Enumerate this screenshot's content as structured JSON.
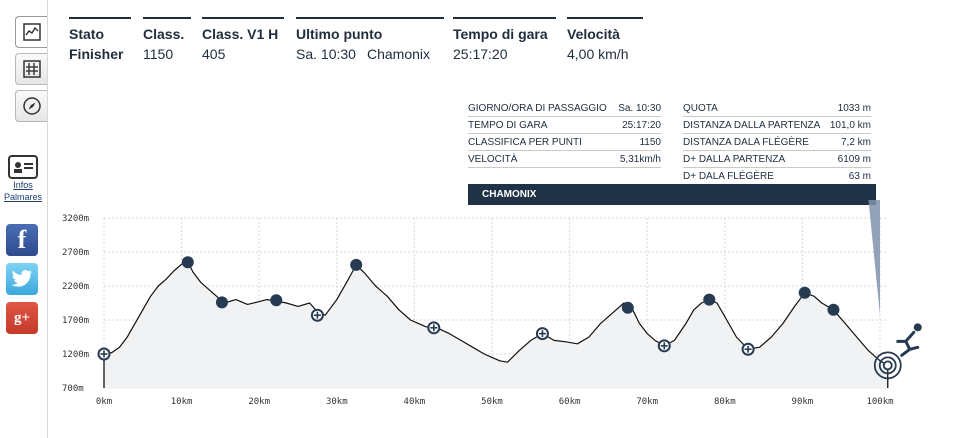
{
  "toolbar": {
    "items": [
      {
        "name": "profile-view-icon"
      },
      {
        "name": "grid-view-icon"
      },
      {
        "name": "compass-icon"
      }
    ],
    "infos_label": "Infos",
    "palmares_label": "Palmares",
    "social": {
      "facebook_glyph": "f",
      "google_glyph": "g+"
    }
  },
  "header": {
    "stats": [
      {
        "label": "Stato",
        "value": "Finisher",
        "value_bold": true
      },
      {
        "label": "Class.",
        "value": "1150"
      },
      {
        "label": "Class. V1 H",
        "value": "405"
      },
      {
        "label": "Ultimo punto",
        "value": "Sa. 10:30",
        "value2": "Chamonix"
      },
      {
        "label": "Tempo di gara",
        "value": "25:17:20"
      },
      {
        "label": "Velocità",
        "value": "4,00 km/h"
      }
    ]
  },
  "point_info": {
    "left": [
      {
        "k": "GIORNO/ORA DI PASSAGGIO",
        "v": "Sa. 10:30"
      },
      {
        "k": "TEMPO DI GARA",
        "v": "25:17:20"
      },
      {
        "k": "CLASSIFICA PER PUNTI",
        "v": "1150"
      },
      {
        "k": "VELOCITÀ",
        "v": "5,31km/h"
      }
    ],
    "right": [
      {
        "k": "QUOTA",
        "v": "1033 m"
      },
      {
        "k": "DISTANZA DALLA PARTENZA",
        "v": "101,0 km"
      },
      {
        "k": "DISTANZA DALA FLÉGÈRE",
        "v": "7,2 km"
      },
      {
        "k": "D+ DALLA PARTENZA",
        "v": "6109 m"
      },
      {
        "k": "D+ DALA FLÉGÈRE",
        "v": "63 m"
      }
    ],
    "place": "CHAMONIX"
  },
  "chart_data": {
    "type": "area",
    "title": "",
    "xlabel": "",
    "ylabel": "",
    "xlim": [
      0,
      101
    ],
    "ylim": [
      700,
      3200
    ],
    "x_ticks": [
      0,
      10,
      20,
      30,
      40,
      50,
      60,
      70,
      80,
      90,
      100
    ],
    "x_tick_labels": [
      "0km",
      "10km",
      "20km",
      "30km",
      "40km",
      "50km",
      "60km",
      "70km",
      "80km",
      "90km",
      "100km"
    ],
    "y_ticks": [
      700,
      1200,
      1700,
      2200,
      2700,
      3200
    ],
    "y_tick_labels": [
      "700m",
      "1200m",
      "1700m",
      "2200m",
      "2700m",
      "3200m"
    ],
    "grid": true,
    "series": [
      {
        "x": [
          0,
          1,
          2,
          3,
          4,
          5,
          6,
          7,
          8,
          9,
          10,
          10.8,
          11.5,
          12.5,
          13.5,
          14.5,
          15.5,
          17,
          18.5,
          20,
          21,
          22.2,
          23.5,
          25,
          26.5,
          27.5,
          28.5,
          30,
          31.5,
          32.5,
          33.5,
          35,
          36.5,
          38,
          39.5,
          40.5,
          41.5,
          43,
          44.5,
          46,
          47.5,
          49,
          50,
          51,
          52,
          53.5,
          55,
          56.5,
          58,
          59.5,
          61,
          62.5,
          64,
          65.5,
          67,
          68,
          69,
          70,
          71,
          72.2,
          73.5,
          75,
          76,
          77,
          78,
          79,
          80,
          81.5,
          83,
          84.5,
          86,
          87.5,
          89,
          90.3,
          91.5,
          92.5,
          94,
          95.5,
          97,
          98.5,
          100,
          101
        ],
        "y": [
          1200,
          1220,
          1300,
          1450,
          1650,
          1850,
          2050,
          2200,
          2300,
          2420,
          2520,
          2550,
          2400,
          2250,
          2150,
          2050,
          1950,
          2000,
          1930,
          1970,
          2000,
          1980,
          1950,
          1900,
          1950,
          1820,
          1770,
          2000,
          2300,
          2510,
          2400,
          2200,
          2050,
          1850,
          1700,
          1650,
          1600,
          1580,
          1500,
          1400,
          1300,
          1200,
          1150,
          1100,
          1080,
          1250,
          1400,
          1500,
          1400,
          1380,
          1350,
          1450,
          1650,
          1800,
          1950,
          1880,
          1650,
          1500,
          1400,
          1320,
          1400,
          1650,
          1850,
          1950,
          2000,
          1950,
          1750,
          1450,
          1270,
          1300,
          1450,
          1650,
          1900,
          2100,
          2050,
          1950,
          1850,
          1650,
          1450,
          1250,
          1100,
          1033
        ]
      }
    ],
    "markers": [
      {
        "x": 0,
        "y": 1200,
        "kind": "cross"
      },
      {
        "x": 10.8,
        "y": 2550,
        "kind": "dot"
      },
      {
        "x": 15.2,
        "y": 1960,
        "kind": "dot"
      },
      {
        "x": 22.2,
        "y": 1990,
        "kind": "dot"
      },
      {
        "x": 27.5,
        "y": 1770,
        "kind": "cross"
      },
      {
        "x": 32.5,
        "y": 2510,
        "kind": "dot"
      },
      {
        "x": 42.5,
        "y": 1585,
        "kind": "cross"
      },
      {
        "x": 56.5,
        "y": 1500,
        "kind": "cross"
      },
      {
        "x": 67.5,
        "y": 1880,
        "kind": "dot"
      },
      {
        "x": 72.2,
        "y": 1320,
        "kind": "cross"
      },
      {
        "x": 78,
        "y": 2000,
        "kind": "dot"
      },
      {
        "x": 83,
        "y": 1270,
        "kind": "cross"
      },
      {
        "x": 90.3,
        "y": 2100,
        "kind": "dot"
      },
      {
        "x": 94,
        "y": 1850,
        "kind": "dot"
      },
      {
        "x": 101,
        "y": 1033,
        "kind": "target"
      }
    ],
    "colors": {
      "line": "#111111",
      "fill": "#f1f2f3",
      "marker": "#263a52",
      "grid": "#d9d9d9",
      "pointer": "#7f93ad"
    }
  }
}
